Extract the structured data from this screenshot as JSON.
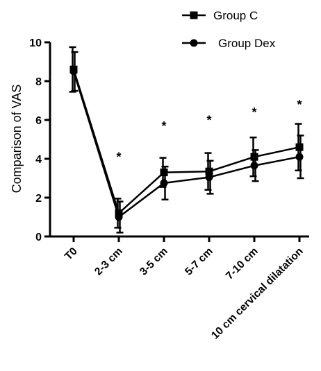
{
  "chart_data": {
    "type": "line",
    "title": "",
    "xlabel": "",
    "ylabel": "Comparison of VAS",
    "ylim": [
      0,
      10
    ],
    "yticks": [
      0,
      2,
      4,
      6,
      8,
      10
    ],
    "categories": [
      "T0",
      "2-3 cm",
      "3-5 cm",
      "5-7 cm",
      "7-10 cm",
      "10 cm cervical dilatation"
    ],
    "series": [
      {
        "name": "Group C",
        "marker": "square",
        "values": [
          8.6,
          1.2,
          3.3,
          3.35,
          4.1,
          4.6
        ],
        "error": [
          1.15,
          0.75,
          0.75,
          0.95,
          1.0,
          1.2
        ]
      },
      {
        "name": "Group Dex",
        "marker": "circle",
        "values": [
          8.5,
          1.0,
          2.75,
          3.05,
          3.65,
          4.1
        ],
        "error": [
          1.0,
          0.8,
          0.85,
          0.85,
          0.8,
          1.1
        ]
      }
    ],
    "annotations": [
      {
        "category": "2-3 cm",
        "text": "*",
        "y": 4.3
      },
      {
        "category": "3-5 cm",
        "text": "*",
        "y": 5.9
      },
      {
        "category": "5-7 cm",
        "text": "*",
        "y": 6.2
      },
      {
        "category": "7-10 cm",
        "text": "*",
        "y": 6.6
      },
      {
        "category": "10 cm cervical dilatation",
        "text": "*",
        "y": 7.0
      }
    ],
    "legend_position": "top-right",
    "grid": false,
    "line_color": "#000000"
  }
}
